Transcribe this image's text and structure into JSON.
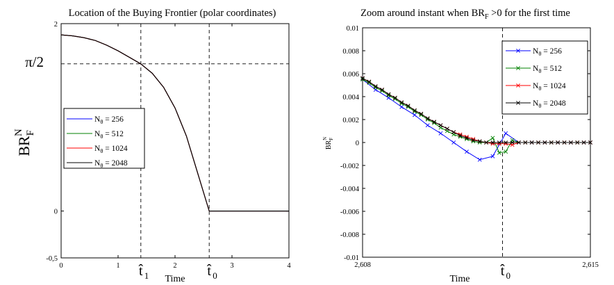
{
  "chart_data": [
    {
      "type": "line",
      "title": "Location of the Buying Frontier (polar coordinates)",
      "xlabel": "Time",
      "ylabel": "BR_F^N",
      "ylabel_main": "BR",
      "ylabel_sub": "F",
      "ylabel_sup": "N",
      "xlim": [
        0,
        4
      ],
      "ylim": [
        -0.5,
        2
      ],
      "xticks": [
        {
          "value": 0,
          "label": "0"
        },
        {
          "value": 1,
          "label": "1"
        },
        {
          "value": 2,
          "label": "2"
        },
        {
          "value": 3,
          "label": "3"
        },
        {
          "value": 4,
          "label": "4"
        }
      ],
      "yticks": [
        {
          "value": -0.5,
          "label": "-0,5"
        },
        {
          "value": 0,
          "label": "0"
        },
        {
          "value": 2,
          "label": "2"
        }
      ],
      "special_ticks": {
        "pi_half_value": 1.5708,
        "pi_half_label": "π/2",
        "t1_value": 1.4,
        "t1_label": "t̂",
        "t1_sub": "1",
        "t0_value": 2.6,
        "t0_label": "t̂",
        "t0_sub": "0"
      },
      "reference_lines": [
        {
          "orientation": "horizontal",
          "value": 1.5708
        },
        {
          "orientation": "vertical",
          "value": 1.4
        },
        {
          "orientation": "vertical",
          "value": 2.6
        }
      ],
      "legend": {
        "placement": "center-left"
      },
      "series": [
        {
          "name": "N = 256",
          "name_main": "N",
          "name_sub": "θ",
          "name_rest": " = 256",
          "color": "#0000ff"
        },
        {
          "name": "N = 512",
          "name_main": "N",
          "name_sub": "θ",
          "name_rest": " = 512",
          "color": "#008000"
        },
        {
          "name": "N = 1024",
          "name_main": "N",
          "name_sub": "θ",
          "name_rest": " = 1024",
          "color": "#ff0000"
        },
        {
          "name": "N = 2048",
          "name_main": "N",
          "name_sub": "θ",
          "name_rest": " = 2048",
          "color": "#000000"
        }
      ],
      "x": [
        0,
        0.2,
        0.4,
        0.6,
        0.8,
        1.0,
        1.2,
        1.4,
        1.6,
        1.8,
        2.0,
        2.2,
        2.4,
        2.6,
        3.0,
        3.5,
        4.0
      ],
      "y": [
        1.88,
        1.87,
        1.85,
        1.82,
        1.77,
        1.71,
        1.64,
        1.57,
        1.47,
        1.32,
        1.1,
        0.8,
        0.4,
        0.0,
        0.0,
        0.0,
        0.0
      ]
    },
    {
      "type": "line",
      "title": "Zoom around instant when BR >0 for the first time",
      "title_pre": "Zoom around instant when BR",
      "title_sub": "F",
      "title_post": " >0 for the first time",
      "xlabel": "Time",
      "ylabel": "BR_F^N",
      "ylabel_main": "BR",
      "ylabel_sub": "F",
      "ylabel_sup": "N",
      "xlim": [
        2.608,
        2.615
      ],
      "ylim": [
        -0.01,
        0.01
      ],
      "xticks": [
        {
          "value": 2.608,
          "label": "2,608"
        },
        {
          "value": 2.615,
          "label": "2,615"
        }
      ],
      "yticks": [
        {
          "value": 0.01,
          "label": "0.01"
        },
        {
          "value": 0.008,
          "label": "0.008"
        },
        {
          "value": 0.006,
          "label": "0.006"
        },
        {
          "value": 0.004,
          "label": "0.004"
        },
        {
          "value": 0.002,
          "label": "0.002"
        },
        {
          "value": 0,
          "label": "0"
        },
        {
          "value": -0.002,
          "label": "-0.002"
        },
        {
          "value": -0.004,
          "label": "-0.004"
        },
        {
          "value": -0.006,
          "label": "-0.006"
        },
        {
          "value": -0.008,
          "label": "-0.008"
        },
        {
          "value": -0.01,
          "label": "-0.01"
        }
      ],
      "special_ticks": {
        "t0_value": 2.6123,
        "t0_label": "t̂",
        "t0_sub": "0"
      },
      "reference_lines": [
        {
          "orientation": "vertical",
          "value": 2.6123
        }
      ],
      "legend": {
        "placement": "top-right"
      },
      "series": [
        {
          "name": "N = 256",
          "name_main": "N",
          "name_sub": "θ",
          "name_rest": " = 256",
          "color": "#0000ff",
          "x": [
            2.608,
            2.6084,
            2.6088,
            2.6092,
            2.6096,
            2.61,
            2.6104,
            2.6108,
            2.6112,
            2.6116,
            2.612,
            2.6124,
            2.6128,
            2.6132,
            2.6136,
            2.614,
            2.6144,
            2.6148,
            2.615
          ],
          "y": [
            0.0055,
            0.0046,
            0.0039,
            0.0031,
            0.0024,
            0.0015,
            0.0008,
            0.0,
            -0.0008,
            -0.0015,
            -0.0012,
            0.0008,
            0.0,
            0.0,
            0.0,
            0.0,
            0.0,
            0.0,
            0.0
          ]
        },
        {
          "name": "N = 512",
          "name_main": "N",
          "name_sub": "θ",
          "name_rest": " = 512",
          "color": "#008000",
          "x": [
            2.608,
            2.6082,
            2.6084,
            2.6086,
            2.6088,
            2.609,
            2.6092,
            2.6094,
            2.6096,
            2.6098,
            2.61,
            2.6102,
            2.6104,
            2.6106,
            2.6108,
            2.611,
            2.6112,
            2.6114,
            2.6116,
            2.6118,
            2.612,
            2.6122,
            2.6124,
            2.6126,
            2.6128,
            2.613,
            2.6132,
            2.6134,
            2.6136,
            2.6138,
            2.614,
            2.6142,
            2.6144,
            2.6146,
            2.6148,
            2.615
          ],
          "y": [
            0.0055,
            0.0052,
            0.0048,
            0.0045,
            0.0041,
            0.0038,
            0.0034,
            0.0031,
            0.0027,
            0.0024,
            0.002,
            0.0017,
            0.0013,
            0.001,
            0.0007,
            0.0005,
            0.0003,
            0.0001,
            0.0,
            0.0,
            0.0004,
            -0.0009,
            -0.0008,
            0.0002,
            0.0,
            0.0,
            0.0,
            0.0,
            0.0,
            0.0,
            0.0,
            0.0,
            0.0,
            0.0,
            0.0,
            0.0
          ]
        },
        {
          "name": "N = 1024",
          "name_main": "N",
          "name_sub": "θ",
          "name_rest": " = 1024",
          "color": "#ff0000",
          "x": [
            2.608,
            2.6082,
            2.6084,
            2.6086,
            2.6088,
            2.609,
            2.6092,
            2.6094,
            2.6096,
            2.6098,
            2.61,
            2.6102,
            2.6104,
            2.6106,
            2.6108,
            2.611,
            2.6112,
            2.6114,
            2.6116,
            2.6118,
            2.612,
            2.6122,
            2.6124,
            2.6126,
            2.6128,
            2.613,
            2.6132,
            2.6134,
            2.6136,
            2.6138,
            2.614,
            2.6142,
            2.6144,
            2.6146,
            2.6148,
            2.615
          ],
          "y": [
            0.0056,
            0.0053,
            0.0049,
            0.0046,
            0.0042,
            0.0039,
            0.0035,
            0.0032,
            0.0028,
            0.0025,
            0.0021,
            0.0018,
            0.0015,
            0.0012,
            0.0009,
            0.0007,
            0.0005,
            0.0003,
            0.0001,
            0.0,
            -0.0001,
            -0.0001,
            -0.0001,
            -0.0002,
            0.0,
            0.0,
            0.0,
            0.0,
            0.0,
            0.0,
            0.0,
            0.0,
            0.0,
            0.0,
            0.0,
            0.0
          ]
        },
        {
          "name": "N = 2048",
          "name_main": "N",
          "name_sub": "θ",
          "name_rest": " = 2048",
          "color": "#000000",
          "x": [
            2.608,
            2.6082,
            2.6084,
            2.6086,
            2.6088,
            2.609,
            2.6092,
            2.6094,
            2.6096,
            2.6098,
            2.61,
            2.6102,
            2.6104,
            2.6106,
            2.6108,
            2.611,
            2.6112,
            2.6114,
            2.6116,
            2.6118,
            2.612,
            2.6122,
            2.6124,
            2.6126,
            2.6128,
            2.613,
            2.6132,
            2.6134,
            2.6136,
            2.6138,
            2.614,
            2.6142,
            2.6144,
            2.6146,
            2.6148,
            2.615
          ],
          "y": [
            0.0056,
            0.0053,
            0.0049,
            0.0046,
            0.0042,
            0.0039,
            0.0035,
            0.0032,
            0.0028,
            0.0025,
            0.0021,
            0.0018,
            0.0015,
            0.0012,
            0.0009,
            0.0006,
            0.0004,
            0.0002,
            0.0001,
            0.0,
            0.0,
            0.0,
            0.0,
            0.0,
            0.0,
            0.0,
            0.0,
            0.0,
            0.0,
            0.0,
            0.0,
            0.0,
            0.0,
            0.0,
            0.0,
            0.0
          ]
        }
      ]
    }
  ]
}
